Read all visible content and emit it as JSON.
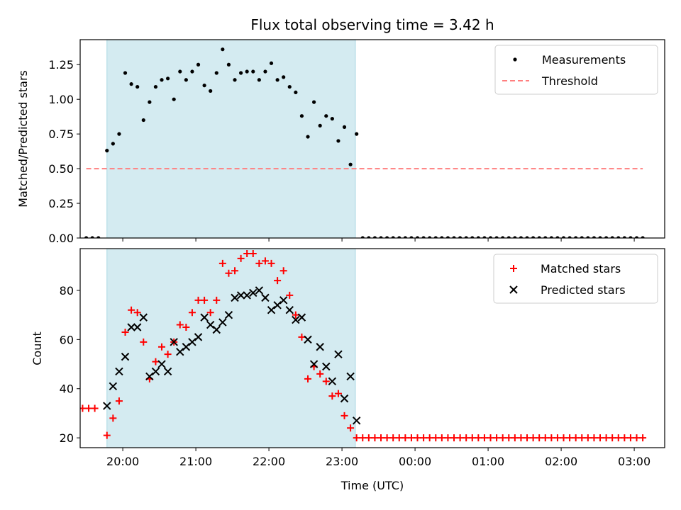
{
  "chart_data": [
    {
      "type": "scatter",
      "title": "Flux total observing time = 3.42 h",
      "ylabel": "Matched/Predicted stars",
      "xlabel": "",
      "x_unit": "time_utc",
      "xlim": [
        "19:25",
        "03:25"
      ],
      "ylim": [
        0,
        1.43
      ],
      "yticks": [
        "0.00",
        "0.25",
        "0.50",
        "0.75",
        "1.00",
        "1.25"
      ],
      "shaded_interval": [
        "19:47",
        "23:11"
      ],
      "shade_color": "#d4ebf1",
      "legend_position": "top-right",
      "series": [
        {
          "name": "Measurements",
          "color": "#000000",
          "marker": "dot",
          "points": [
            [
              "19:30",
              0
            ],
            [
              "19:35",
              0
            ],
            [
              "19:40",
              0
            ],
            [
              "19:47",
              0.63
            ],
            [
              "19:52",
              0.68
            ],
            [
              "19:57",
              0.75
            ],
            [
              "20:02",
              1.19
            ],
            [
              "20:07",
              1.11
            ],
            [
              "20:12",
              1.09
            ],
            [
              "20:17",
              0.85
            ],
            [
              "20:22",
              0.98
            ],
            [
              "20:27",
              1.09
            ],
            [
              "20:32",
              1.14
            ],
            [
              "20:37",
              1.15
            ],
            [
              "20:42",
              1.0
            ],
            [
              "20:47",
              1.2
            ],
            [
              "20:52",
              1.14
            ],
            [
              "20:57",
              1.2
            ],
            [
              "21:02",
              1.25
            ],
            [
              "21:07",
              1.1
            ],
            [
              "21:12",
              1.06
            ],
            [
              "21:17",
              1.19
            ],
            [
              "21:22",
              1.36
            ],
            [
              "21:27",
              1.25
            ],
            [
              "21:32",
              1.14
            ],
            [
              "21:37",
              1.19
            ],
            [
              "21:42",
              1.2
            ],
            [
              "21:47",
              1.2
            ],
            [
              "21:52",
              1.14
            ],
            [
              "21:57",
              1.2
            ],
            [
              "22:02",
              1.26
            ],
            [
              "22:07",
              1.14
            ],
            [
              "22:12",
              1.16
            ],
            [
              "22:17",
              1.09
            ],
            [
              "22:22",
              1.05
            ],
            [
              "22:27",
              0.88
            ],
            [
              "22:32",
              0.73
            ],
            [
              "22:37",
              0.98
            ],
            [
              "22:42",
              0.81
            ],
            [
              "22:47",
              0.88
            ],
            [
              "22:52",
              0.86
            ],
            [
              "22:57",
              0.7
            ],
            [
              "23:02",
              0.8
            ],
            [
              "23:07",
              0.53
            ],
            [
              "23:12",
              0.75
            ],
            [
              "23:17",
              0
            ],
            [
              "23:22",
              0
            ],
            [
              "23:27",
              0
            ],
            [
              "23:32",
              0
            ],
            [
              "23:37",
              0
            ],
            [
              "23:42",
              0
            ],
            [
              "23:47",
              0
            ],
            [
              "23:52",
              0
            ],
            [
              "23:57",
              0
            ],
            [
              "00:02",
              0
            ],
            [
              "00:07",
              0
            ],
            [
              "00:12",
              0
            ],
            [
              "00:17",
              0
            ],
            [
              "00:22",
              0
            ],
            [
              "00:27",
              0
            ],
            [
              "00:32",
              0
            ],
            [
              "00:37",
              0
            ],
            [
              "00:42",
              0
            ],
            [
              "00:47",
              0
            ],
            [
              "00:52",
              0
            ],
            [
              "00:57",
              0
            ],
            [
              "01:02",
              0
            ],
            [
              "01:07",
              0
            ],
            [
              "01:12",
              0
            ],
            [
              "01:17",
              0
            ],
            [
              "01:22",
              0
            ],
            [
              "01:27",
              0
            ],
            [
              "01:32",
              0
            ],
            [
              "01:37",
              0
            ],
            [
              "01:42",
              0
            ],
            [
              "01:47",
              0
            ],
            [
              "01:52",
              0
            ],
            [
              "01:57",
              0
            ],
            [
              "02:02",
              0
            ],
            [
              "02:07",
              0
            ],
            [
              "02:12",
              0
            ],
            [
              "02:17",
              0
            ],
            [
              "02:22",
              0
            ],
            [
              "02:27",
              0
            ],
            [
              "02:32",
              0
            ],
            [
              "02:37",
              0
            ],
            [
              "02:42",
              0
            ],
            [
              "02:47",
              0
            ],
            [
              "02:52",
              0
            ],
            [
              "02:57",
              0
            ],
            [
              "03:02",
              0
            ],
            [
              "03:07",
              0
            ]
          ]
        },
        {
          "name": "Threshold",
          "color": "#ff7f7f",
          "style": "dashed",
          "points": [
            [
              "19:30",
              0.5
            ],
            [
              "03:07",
              0.5
            ]
          ]
        }
      ]
    },
    {
      "type": "scatter",
      "title": "",
      "ylabel": "Count",
      "xlabel": "Time (UTC)",
      "x_unit": "time_utc",
      "xlim": [
        "19:25",
        "03:25"
      ],
      "ylim": [
        16,
        97
      ],
      "yticks": [
        "20",
        "40",
        "60",
        "80"
      ],
      "xticks": [
        "20:00",
        "21:00",
        "22:00",
        "23:00",
        "00:00",
        "01:00",
        "02:00",
        "03:00"
      ],
      "shaded_interval": [
        "19:47",
        "23:11"
      ],
      "shade_color": "#d4ebf1",
      "legend_position": "top-right",
      "series": [
        {
          "name": "Matched stars",
          "color": "#ff0000",
          "marker": "plus",
          "points": [
            [
              "19:27",
              32
            ],
            [
              "19:32",
              32
            ],
            [
              "19:37",
              32
            ],
            [
              "19:47",
              21
            ],
            [
              "19:52",
              28
            ],
            [
              "19:57",
              35
            ],
            [
              "20:02",
              63
            ],
            [
              "20:07",
              72
            ],
            [
              "20:12",
              71
            ],
            [
              "20:17",
              59
            ],
            [
              "20:22",
              44
            ],
            [
              "20:27",
              51
            ],
            [
              "20:32",
              57
            ],
            [
              "20:37",
              54
            ],
            [
              "20:42",
              59
            ],
            [
              "20:47",
              66
            ],
            [
              "20:52",
              65
            ],
            [
              "20:57",
              71
            ],
            [
              "21:02",
              76
            ],
            [
              "21:07",
              76
            ],
            [
              "21:12",
              71
            ],
            [
              "21:17",
              76
            ],
            [
              "21:22",
              91
            ],
            [
              "21:27",
              87
            ],
            [
              "21:32",
              88
            ],
            [
              "21:37",
              93
            ],
            [
              "21:42",
              95
            ],
            [
              "21:47",
              95
            ],
            [
              "21:52",
              91
            ],
            [
              "21:57",
              92
            ],
            [
              "22:02",
              91
            ],
            [
              "22:07",
              84
            ],
            [
              "22:12",
              88
            ],
            [
              "22:17",
              78
            ],
            [
              "22:22",
              70
            ],
            [
              "22:27",
              61
            ],
            [
              "22:32",
              44
            ],
            [
              "22:37",
              49
            ],
            [
              "22:42",
              46
            ],
            [
              "22:47",
              43
            ],
            [
              "22:52",
              37
            ],
            [
              "22:57",
              38
            ],
            [
              "23:02",
              29
            ],
            [
              "23:07",
              24
            ],
            [
              "23:12",
              20
            ],
            [
              "23:17",
              20
            ],
            [
              "23:22",
              20
            ],
            [
              "23:27",
              20
            ],
            [
              "23:32",
              20
            ],
            [
              "23:37",
              20
            ],
            [
              "23:42",
              20
            ],
            [
              "23:47",
              20
            ],
            [
              "23:52",
              20
            ],
            [
              "23:57",
              20
            ],
            [
              "00:02",
              20
            ],
            [
              "00:07",
              20
            ],
            [
              "00:12",
              20
            ],
            [
              "00:17",
              20
            ],
            [
              "00:22",
              20
            ],
            [
              "00:27",
              20
            ],
            [
              "00:32",
              20
            ],
            [
              "00:37",
              20
            ],
            [
              "00:42",
              20
            ],
            [
              "00:47",
              20
            ],
            [
              "00:52",
              20
            ],
            [
              "00:57",
              20
            ],
            [
              "01:02",
              20
            ],
            [
              "01:07",
              20
            ],
            [
              "01:12",
              20
            ],
            [
              "01:17",
              20
            ],
            [
              "01:22",
              20
            ],
            [
              "01:27",
              20
            ],
            [
              "01:32",
              20
            ],
            [
              "01:37",
              20
            ],
            [
              "01:42",
              20
            ],
            [
              "01:47",
              20
            ],
            [
              "01:52",
              20
            ],
            [
              "01:57",
              20
            ],
            [
              "02:02",
              20
            ],
            [
              "02:07",
              20
            ],
            [
              "02:12",
              20
            ],
            [
              "02:17",
              20
            ],
            [
              "02:22",
              20
            ],
            [
              "02:27",
              20
            ],
            [
              "02:32",
              20
            ],
            [
              "02:37",
              20
            ],
            [
              "02:42",
              20
            ],
            [
              "02:47",
              20
            ],
            [
              "02:52",
              20
            ],
            [
              "02:57",
              20
            ],
            [
              "03:02",
              20
            ],
            [
              "03:07",
              20
            ]
          ]
        },
        {
          "name": "Predicted stars",
          "color": "#000000",
          "marker": "x",
          "points": [
            [
              "19:47",
              33
            ],
            [
              "19:52",
              41
            ],
            [
              "19:57",
              47
            ],
            [
              "20:02",
              53
            ],
            [
              "20:07",
              65
            ],
            [
              "20:12",
              65
            ],
            [
              "20:17",
              69
            ],
            [
              "20:22",
              45
            ],
            [
              "20:27",
              47
            ],
            [
              "20:32",
              50
            ],
            [
              "20:37",
              47
            ],
            [
              "20:42",
              59
            ],
            [
              "20:47",
              55
            ],
            [
              "20:52",
              57
            ],
            [
              "20:57",
              59
            ],
            [
              "21:02",
              61
            ],
            [
              "21:07",
              69
            ],
            [
              "21:12",
              66
            ],
            [
              "21:17",
              64
            ],
            [
              "21:22",
              67
            ],
            [
              "21:27",
              70
            ],
            [
              "21:32",
              77
            ],
            [
              "21:37",
              78
            ],
            [
              "21:42",
              78
            ],
            [
              "21:47",
              79
            ],
            [
              "21:52",
              80
            ],
            [
              "21:57",
              77
            ],
            [
              "22:02",
              72
            ],
            [
              "22:07",
              74
            ],
            [
              "22:12",
              76
            ],
            [
              "22:17",
              72
            ],
            [
              "22:22",
              68
            ],
            [
              "22:27",
              69
            ],
            [
              "22:32",
              60
            ],
            [
              "22:37",
              50
            ],
            [
              "22:42",
              57
            ],
            [
              "22:47",
              49
            ],
            [
              "22:52",
              43
            ],
            [
              "22:57",
              54
            ],
            [
              "23:02",
              36
            ],
            [
              "23:07",
              45
            ],
            [
              "23:12",
              27
            ]
          ]
        }
      ]
    }
  ]
}
